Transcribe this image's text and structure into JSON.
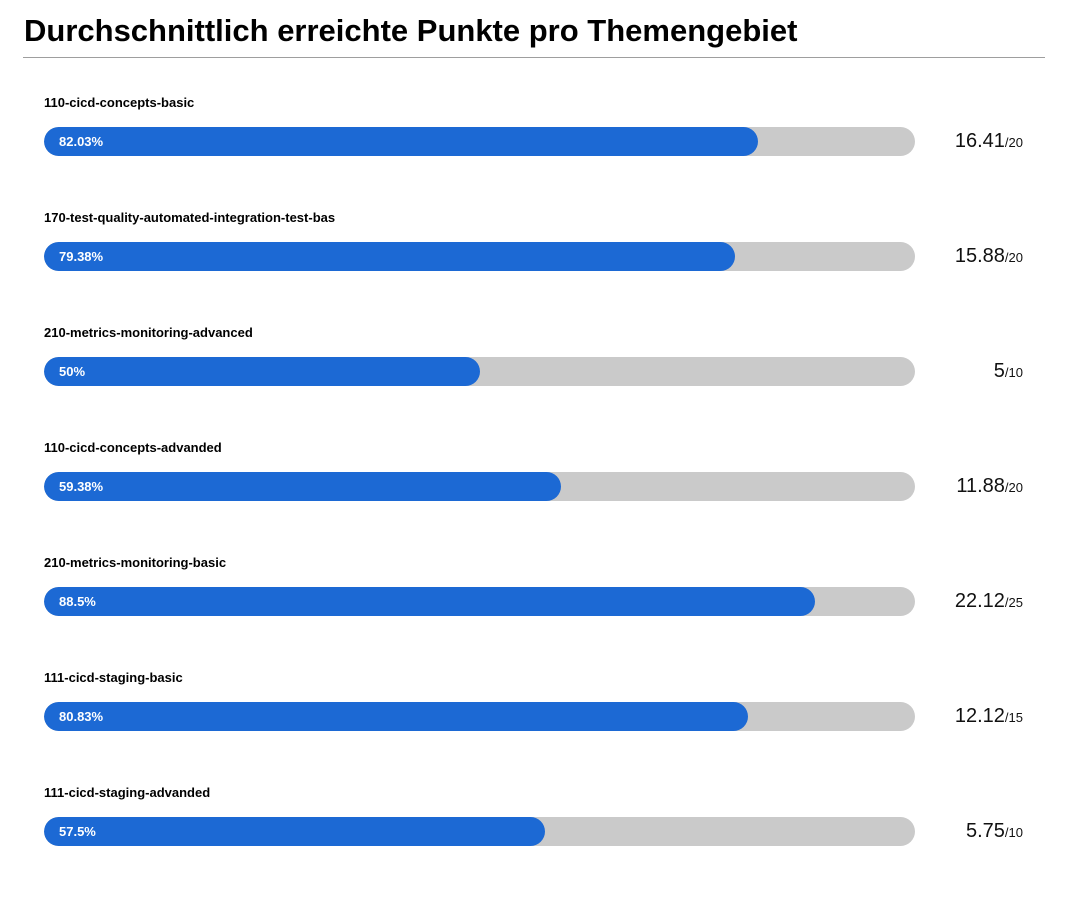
{
  "page": {
    "title": "Durchschnittlich erreichte Punkte pro Themengebiet"
  },
  "colors": {
    "bar_fill": "#1c69d4",
    "bar_track": "#cacaca",
    "title_rule": "#9e9e9e"
  },
  "chart_data": {
    "type": "bar",
    "orientation": "horizontal",
    "title": "Durchschnittlich erreichte Punkte pro Themengebiet",
    "xlim": [
      0,
      100
    ],
    "grid": false,
    "rows": [
      {
        "category": "110-cicd-concepts-basic",
        "percent": 82.03,
        "percent_label": "82.03%",
        "score": "16.41",
        "max": "20"
      },
      {
        "category": "170-test-quality-automated-integration-test-bas",
        "percent": 79.38,
        "percent_label": "79.38%",
        "score": "15.88",
        "max": "20"
      },
      {
        "category": "210-metrics-monitoring-advanced",
        "percent": 50,
        "percent_label": "50%",
        "score": "5",
        "max": "10"
      },
      {
        "category": "110-cicd-concepts-advanded",
        "percent": 59.38,
        "percent_label": "59.38%",
        "score": "11.88",
        "max": "20"
      },
      {
        "category": "210-metrics-monitoring-basic",
        "percent": 88.5,
        "percent_label": "88.5%",
        "score": "22.12",
        "max": "25"
      },
      {
        "category": "111-cicd-staging-basic",
        "percent": 80.83,
        "percent_label": "80.83%",
        "score": "12.12",
        "max": "15"
      },
      {
        "category": "111-cicd-staging-advanded",
        "percent": 57.5,
        "percent_label": "57.5%",
        "score": "5.75",
        "max": "10"
      }
    ]
  }
}
